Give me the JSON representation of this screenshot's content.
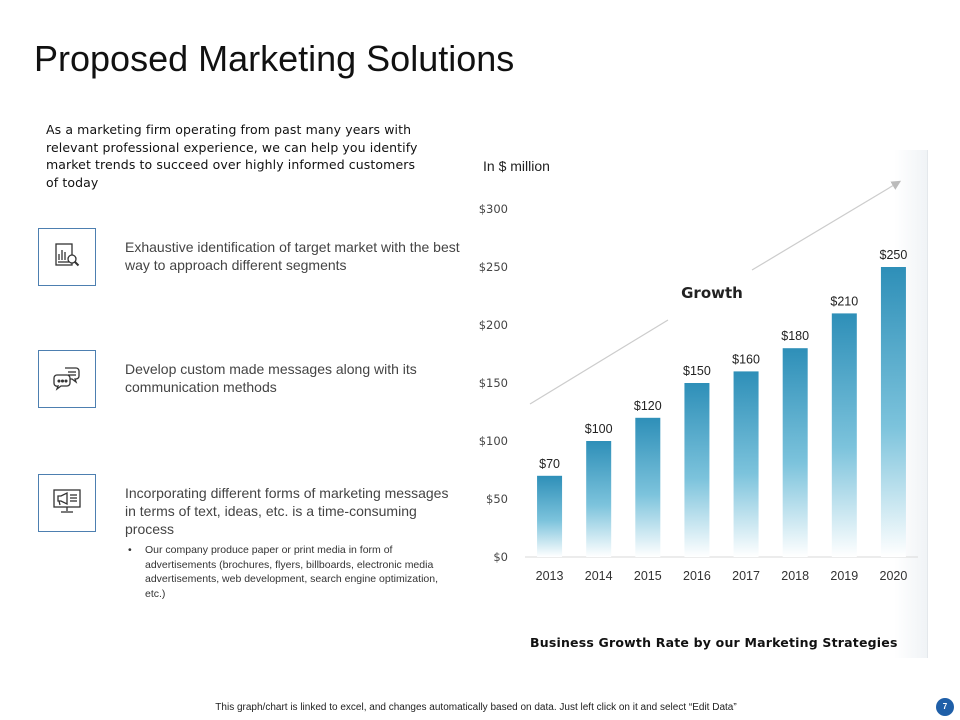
{
  "title": "Proposed Marketing Solutions",
  "intro": "As a marketing firm operating from past many years with relevant professional experience, we can help you identify market trends to succeed over highly informed customers of today",
  "solutions": [
    {
      "icon": "market-analysis-icon",
      "text": "Exhaustive identification of target market with the best way to approach different segments"
    },
    {
      "icon": "chat-bubbles-icon",
      "text": "Develop custom made messages along with its communication methods"
    },
    {
      "icon": "monitor-megaphone-icon",
      "text": "Incorporating different forms of marketing messages in terms of text, ideas, etc. is a time-consuming process"
    }
  ],
  "bullet": {
    "marker": "•",
    "text": "Our company produce paper or print media in form of advertisements (brochures, flyers, billboards, electronic media advertisements, web development, search engine optimization, etc.)"
  },
  "unit_label": "In $ million",
  "caption": "Business Growth Rate by our Marketing Strategies",
  "footer": "This graph/chart is linked to excel, and changes automatically based on data. Just left click on it and select “Edit Data”",
  "page_number": "7",
  "colors": {
    "bar_top": "#2e8fb8",
    "bar_bottom": "#ffffff",
    "icon_border": "#4d7fb0",
    "page_badge": "#1f5fa8",
    "arrow": "#cccccc"
  },
  "chart_data": {
    "type": "bar",
    "categories": [
      "2013",
      "2014",
      "2015",
      "2016",
      "2017",
      "2018",
      "2019",
      "2020"
    ],
    "values": [
      70,
      100,
      120,
      150,
      160,
      180,
      210,
      250
    ],
    "data_labels": [
      "$70",
      "$100",
      "$120",
      "$150",
      "$160",
      "$180",
      "$210",
      "$250"
    ],
    "y_ticks": [
      0,
      50,
      100,
      150,
      200,
      250,
      300
    ],
    "y_tick_labels": [
      "$0",
      "$50",
      "$100",
      "$150",
      "$200",
      "$250",
      "$300"
    ],
    "ylim": [
      0,
      300
    ],
    "annotation": "Growth",
    "legend": "none",
    "grid": false
  }
}
